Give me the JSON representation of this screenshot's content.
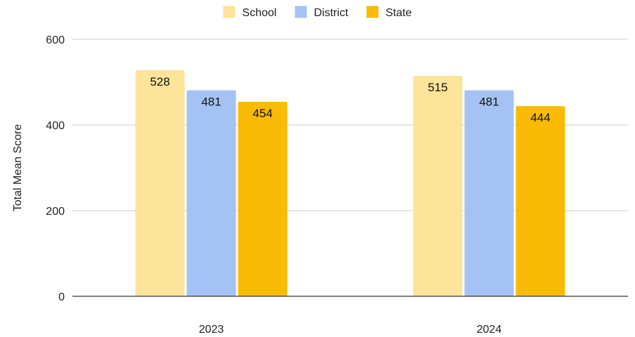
{
  "chart_data": {
    "type": "bar",
    "categories": [
      "2023",
      "2024"
    ],
    "series": [
      {
        "name": "School",
        "values": [
          528,
          515
        ],
        "color": "#FDE49B"
      },
      {
        "name": "District",
        "values": [
          481,
          481
        ],
        "color": "#A4C2F4"
      },
      {
        "name": "State",
        "values": [
          454,
          444
        ],
        "color": "#F9BB06"
      }
    ],
    "title": "",
    "xlabel": "",
    "ylabel": "Total Mean Score",
    "ylim": [
      0,
      600
    ],
    "yticks": [
      0,
      200,
      400,
      600
    ],
    "grid": true,
    "legend_position": "top-center",
    "data_labels": true
  }
}
